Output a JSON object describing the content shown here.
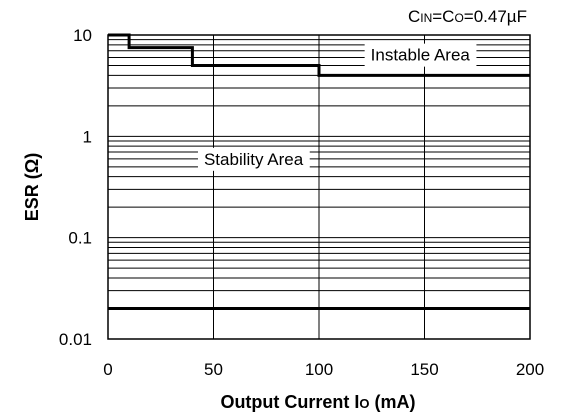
{
  "chart_data": {
    "type": "line",
    "title": "",
    "annotation": {
      "c_in": "C",
      "c_in_sub": "IN",
      "eq1": "=C",
      "c_o_sub": "O",
      "eq2": "=0.47µF"
    },
    "xlabel": {
      "main": "Output Current I",
      "sub": "O",
      "tail": " (mA)"
    },
    "ylabel": "ESR (Ω)",
    "xlim": [
      0,
      200
    ],
    "ylim": [
      0.01,
      10
    ],
    "yscale": "log",
    "xticks": [
      0,
      50,
      100,
      150,
      200
    ],
    "xtick_labels": [
      "0",
      "50",
      "100",
      "150",
      "200"
    ],
    "yticks": [
      0.01,
      0.1,
      1,
      10
    ],
    "ytick_labels": [
      "0.01",
      "0.1",
      "1",
      "10"
    ],
    "grid": true,
    "series": [
      {
        "x": [
          0,
          10,
          10,
          40,
          40,
          100,
          100,
          200
        ],
        "y": [
          10,
          10,
          7.5,
          7.5,
          5,
          5,
          4,
          4
        ]
      },
      {
        "x": [
          0,
          200
        ],
        "y": [
          0.02,
          0.02
        ]
      }
    ],
    "region_labels": [
      {
        "text": "Instable Area",
        "x": 148,
        "y": 6.4
      },
      {
        "text": "Stability Area",
        "x": 69,
        "y": 0.6
      }
    ]
  }
}
